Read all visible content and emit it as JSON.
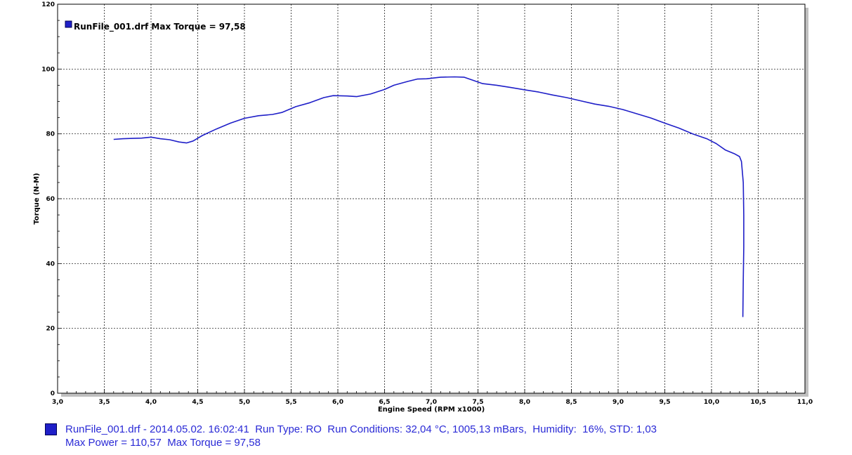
{
  "chart_data": {
    "type": "line",
    "xlabel": "Engine Speed (RPM x1000)",
    "ylabel": "Torque (N-M)",
    "xlim": [
      3.0,
      11.0
    ],
    "ylim": [
      0,
      120
    ],
    "x_ticks": [
      "3,0",
      "3,5",
      "4,0",
      "4,5",
      "5,0",
      "5,5",
      "6,0",
      "6,5",
      "7,0",
      "7,5",
      "8,0",
      "8,5",
      "9,0",
      "9,5",
      "10,0",
      "10,5",
      "11,0"
    ],
    "y_ticks": [
      "0",
      "20",
      "40",
      "60",
      "80",
      "100",
      "120"
    ],
    "grid": true,
    "legend_position": "top-left",
    "line_color": "#1f1fc8",
    "series": [
      {
        "name": "RunFile_001.drf Max Torque = 97,58",
        "points": [
          [
            3.6,
            78.3
          ],
          [
            3.7,
            78.5
          ],
          [
            3.8,
            78.6
          ],
          [
            3.9,
            78.7
          ],
          [
            4.0,
            79.0
          ],
          [
            4.1,
            78.5
          ],
          [
            4.2,
            78.2
          ],
          [
            4.3,
            77.5
          ],
          [
            4.38,
            77.2
          ],
          [
            4.45,
            77.8
          ],
          [
            4.55,
            79.5
          ],
          [
            4.7,
            81.5
          ],
          [
            4.85,
            83.3
          ],
          [
            5.0,
            84.8
          ],
          [
            5.15,
            85.6
          ],
          [
            5.3,
            86.0
          ],
          [
            5.4,
            86.6
          ],
          [
            5.55,
            88.4
          ],
          [
            5.7,
            89.6
          ],
          [
            5.85,
            91.2
          ],
          [
            5.95,
            91.8
          ],
          [
            6.1,
            91.7
          ],
          [
            6.2,
            91.5
          ],
          [
            6.35,
            92.3
          ],
          [
            6.5,
            93.7
          ],
          [
            6.6,
            95.0
          ],
          [
            6.75,
            96.2
          ],
          [
            6.85,
            96.9
          ],
          [
            6.95,
            97.0
          ],
          [
            7.1,
            97.5
          ],
          [
            7.25,
            97.58
          ],
          [
            7.35,
            97.5
          ],
          [
            7.45,
            96.5
          ],
          [
            7.55,
            95.5
          ],
          [
            7.7,
            95.0
          ],
          [
            7.85,
            94.3
          ],
          [
            8.0,
            93.6
          ],
          [
            8.15,
            92.9
          ],
          [
            8.3,
            92.0
          ],
          [
            8.45,
            91.2
          ],
          [
            8.6,
            90.2
          ],
          [
            8.75,
            89.2
          ],
          [
            8.9,
            88.5
          ],
          [
            9.05,
            87.5
          ],
          [
            9.2,
            86.2
          ],
          [
            9.35,
            84.9
          ],
          [
            9.5,
            83.3
          ],
          [
            9.65,
            81.8
          ],
          [
            9.8,
            80.0
          ],
          [
            9.95,
            78.5
          ],
          [
            10.05,
            77.0
          ],
          [
            10.15,
            75.0
          ],
          [
            10.25,
            73.8
          ],
          [
            10.3,
            73.0
          ],
          [
            10.32,
            71.5
          ],
          [
            10.34,
            65.0
          ],
          [
            10.345,
            55.0
          ],
          [
            10.345,
            45.0
          ],
          [
            10.34,
            35.0
          ],
          [
            10.335,
            23.5
          ]
        ]
      }
    ]
  },
  "footer": {
    "line1": "RunFile_001.drf - 2014.05.02. 16:02:41  Run Type: RO  Run Conditions: 32,04 °C, 1005,13 mBars,  Humidity:  16%, STD: 1,03",
    "line2": "Max Power = 110,57  Max Torque = 97,58"
  }
}
